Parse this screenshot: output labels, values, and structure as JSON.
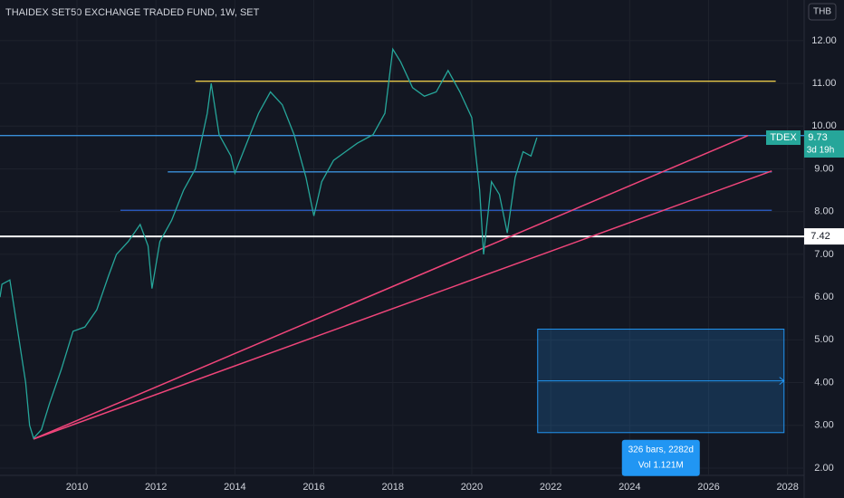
{
  "chart_data": {
    "type": "line",
    "title": "THAIDEX SET50 EXCHANGE TRADED FUND, 1W, SET",
    "currency": "THB",
    "x": [
      2008.05,
      2008.1,
      2008.3,
      2008.5,
      2008.7,
      2008.8,
      2008.9,
      2009.1,
      2009.3,
      2009.6,
      2009.9,
      2010.2,
      2010.5,
      2010.8,
      2011.0,
      2011.3,
      2011.6,
      2011.8,
      2011.9,
      2012.1,
      2012.4,
      2012.7,
      2013.0,
      2013.3,
      2013.4,
      2013.6,
      2013.9,
      2014.0,
      2014.3,
      2014.6,
      2014.9,
      2015.2,
      2015.5,
      2015.8,
      2016.0,
      2016.2,
      2016.5,
      2016.8,
      2017.1,
      2017.5,
      2017.8,
      2018.0,
      2018.2,
      2018.5,
      2018.8,
      2019.1,
      2019.4,
      2019.7,
      2020.0,
      2020.2,
      2020.3,
      2020.5,
      2020.7,
      2020.9,
      2021.1,
      2021.3,
      2021.5,
      2021.65
    ],
    "series": [
      {
        "name": "TDEX",
        "color": "#26a69a",
        "values": [
          6.0,
          6.3,
          6.4,
          5.2,
          4.0,
          3.0,
          2.7,
          2.9,
          3.5,
          4.3,
          5.2,
          5.3,
          5.7,
          6.5,
          7.0,
          7.3,
          7.7,
          7.2,
          6.2,
          7.3,
          7.8,
          8.5,
          9.0,
          10.3,
          11.0,
          9.8,
          9.3,
          8.9,
          9.6,
          10.3,
          10.8,
          10.5,
          9.8,
          8.8,
          7.9,
          8.7,
          9.2,
          9.4,
          9.6,
          9.8,
          10.3,
          11.8,
          11.5,
          10.9,
          10.7,
          10.8,
          11.3,
          10.8,
          10.2,
          8.5,
          7.0,
          8.7,
          8.4,
          7.5,
          8.8,
          9.4,
          9.3,
          9.73
        ]
      }
    ],
    "xlim": [
      2008.05,
      2028.42
    ],
    "ylim": [
      1.83,
      12.95
    ],
    "xticks": [
      2010,
      2012,
      2014,
      2016,
      2018,
      2020,
      2022,
      2024,
      2026,
      2028
    ],
    "yticks": [
      {
        "value": 2,
        "label": "2.00"
      },
      {
        "value": 3,
        "label": "3.00"
      },
      {
        "value": 4,
        "label": "4.00"
      },
      {
        "value": 5,
        "label": "5.00"
      },
      {
        "value": 6,
        "label": "6.00"
      },
      {
        "value": 7,
        "label": "7.00"
      },
      {
        "value": 8,
        "label": "8.00"
      },
      {
        "value": 9,
        "label": "9.00"
      },
      {
        "value": 10,
        "label": "10.00"
      },
      {
        "value": 11,
        "label": "11.00"
      },
      {
        "value": 12,
        "label": "12.00"
      }
    ],
    "hlines": [
      {
        "value": 11.05,
        "x": [
          2013.0,
          2027.7
        ],
        "color": "#e6c84a"
      },
      {
        "value": 9.78,
        "x": [
          2008.05,
          2028.42
        ],
        "color": "#3a8fd9"
      },
      {
        "value": 8.93,
        "x": [
          2012.3,
          2027.6
        ],
        "color": "#3a8fd9"
      },
      {
        "value": 8.03,
        "x": [
          2011.1,
          2027.6
        ],
        "color": "#2d62d0"
      },
      {
        "value": 7.42,
        "x": [
          2008.05,
          2028.42
        ],
        "color": "#ffffff"
      }
    ],
    "trendlines": [
      {
        "x": [
          2008.9,
          2027.0
        ],
        "y": [
          2.68,
          9.78
        ],
        "color": "#f0457a"
      },
      {
        "x": [
          2008.9,
          2027.6
        ],
        "y": [
          2.68,
          8.95
        ],
        "color": "#f0457a"
      }
    ],
    "price_tag": {
      "symbol": "TDEX",
      "value": 9.73,
      "countdown": "3d 19h"
    },
    "range": {
      "x": [
        2021.67,
        2027.91
      ],
      "y": [
        2.83,
        5.25
      ],
      "bars": "326 bars, 2282d",
      "volume": "Vol 1.121M"
    }
  }
}
